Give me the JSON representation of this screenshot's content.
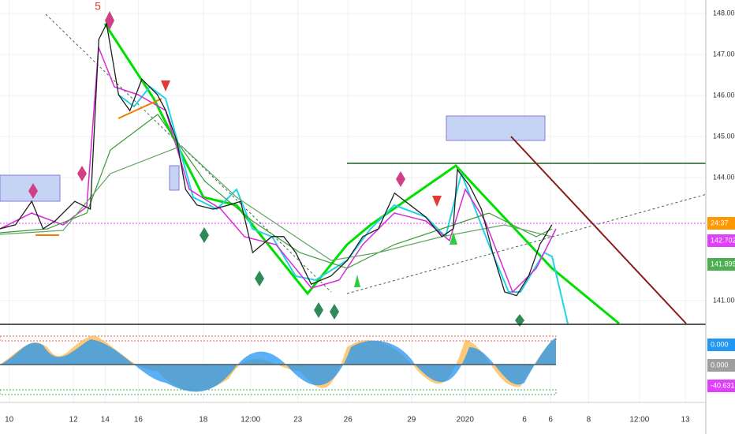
{
  "chart_data": {
    "type": "line",
    "marker_text": "5",
    "x": [
      0,
      2.2,
      4.5,
      6.1,
      7.8,
      10.6,
      12.8,
      14.0,
      15.1,
      16.8,
      18.4,
      20.1,
      22.3,
      23.5,
      25.1,
      26.3,
      27.9,
      30.2,
      32.4,
      34.1,
      35.8,
      38.5,
      40.2,
      41.9,
      44.1,
      46.9,
      49.2,
      51.4,
      53.6,
      55.9,
      58.1,
      60.3,
      62.6,
      64.2,
      64.8,
      66.5,
      68.2,
      69.8,
      71.5,
      73.2,
      74.9,
      76.5,
      78.2
    ],
    "series": [
      {
        "color": "#1f1f1f",
        "values": [
          142.75,
          142.85,
          143.42,
          142.75,
          142.94,
          143.42,
          143.23,
          147.37,
          147.75,
          146.02,
          145.63,
          146.4,
          146.02,
          145.63,
          144.87,
          143.71,
          143.33,
          143.23,
          143.33,
          143.42,
          142.17,
          142.56,
          142.56,
          142.17,
          141.4,
          141.6,
          141.98,
          142.56,
          142.75,
          143.62,
          143.33,
          143.04,
          142.56,
          142.75,
          144.19,
          143.81,
          143.23,
          142.17,
          141.21,
          141.12,
          141.6,
          142.37,
          142.85
        ]
      }
    ],
    "xlim": [
      0,
      100
    ],
    "xticks": [
      {
        "value": 1.3,
        "label": "10"
      },
      {
        "value": 10.4,
        "label": "12"
      },
      {
        "value": 14.9,
        "label": "14"
      },
      {
        "value": 19.6,
        "label": "16"
      },
      {
        "value": 28.8,
        "label": "18"
      },
      {
        "value": 35.5,
        "label": "12:00"
      },
      {
        "value": 42.2,
        "label": "23"
      },
      {
        "value": 49.3,
        "label": "26"
      },
      {
        "value": 58.3,
        "label": "29"
      },
      {
        "value": 65.9,
        "label": "2020"
      },
      {
        "value": 74.3,
        "label": "6"
      },
      {
        "value": 78,
        "label": "6"
      },
      {
        "value": 83.4,
        "label": "8"
      },
      {
        "value": 90.6,
        "label": "12:00"
      },
      {
        "value": 97.1,
        "label": "13"
      }
    ],
    "ylim": [
      140.44,
      148.33
    ],
    "yticks": [
      {
        "value": 141,
        "label": "141.000"
      },
      {
        "value": 144,
        "label": "144.000"
      },
      {
        "value": 145,
        "label": "145.000"
      },
      {
        "value": 146,
        "label": "146.000"
      },
      {
        "value": 147,
        "label": "147.000"
      },
      {
        "value": 148,
        "label": "148.000"
      }
    ],
    "price_labels": [
      {
        "label": "24:37",
        "color": "#ff9800"
      },
      {
        "label": "142.702",
        "color": "#e040fb"
      },
      {
        "label": "141.895",
        "color": "#4caf50"
      }
    ],
    "oscillator_labels": [
      {
        "label": "0.000",
        "color": "#2196f3"
      },
      {
        "label": "0.000",
        "color": "#9e9e9e"
      },
      {
        "label": "-40.631",
        "color": "#e040fb"
      }
    ]
  }
}
